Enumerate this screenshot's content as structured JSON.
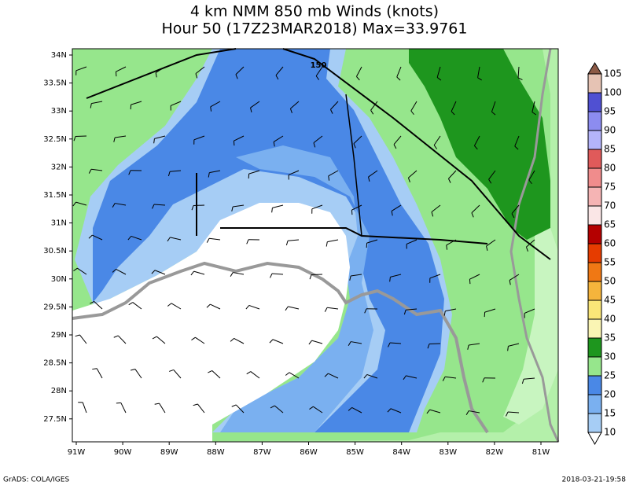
{
  "title": {
    "line1": "4 km NMM 850 mb Winds (knots)",
    "line2": "Hour 50 (17Z23MAR2018) Max=33.9761"
  },
  "lon_labels": [
    "91W",
    "90W",
    "89W",
    "88W",
    "87W",
    "86W",
    "85W",
    "84W",
    "83W",
    "82W",
    "81W"
  ],
  "lat_labels": [
    "34N",
    "33.5N",
    "33N",
    "32.5N",
    "32N",
    "31.5N",
    "31N",
    "30.5N",
    "30N",
    "29.5N",
    "29N",
    "28.5N",
    "28N",
    "27.5N"
  ],
  "colorbar": {
    "levels": [
      "10",
      "15",
      "20",
      "25",
      "30",
      "35",
      "40",
      "45",
      "50",
      "55",
      "60",
      "65",
      "70",
      "75",
      "80",
      "85",
      "90",
      "95",
      "100",
      "105"
    ],
    "colors": [
      "#a6cdf5",
      "#7ab0f0",
      "#4a88e6",
      "#96e68c",
      "#1e961e",
      "#faf5b4",
      "#fae678",
      "#f5b43c",
      "#f07814",
      "#e63c00",
      "#b40000",
      "#fae6e6",
      "#f5b4b4",
      "#f08c8c",
      "#e05a5a",
      "#b4b4fa",
      "#8c8cf0",
      "#5050d2",
      "#e6c3b4",
      "#c8a08c",
      "#8c5a46"
    ]
  },
  "annotation": "150",
  "footer": {
    "left": "GrADS: COLA/IGES",
    "right": "2018-03-21-19:58"
  }
}
